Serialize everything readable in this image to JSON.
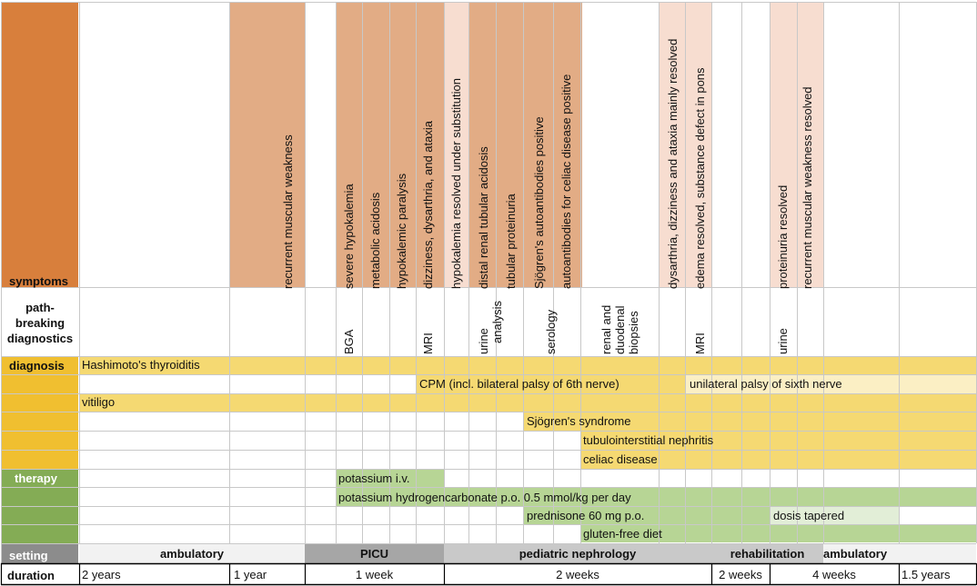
{
  "row_headers": {
    "symptoms": "symptoms",
    "diagnostics": [
      "path-",
      "breaking",
      "diagnostics"
    ],
    "diagnosis": "diagnosis",
    "therapy": "therapy",
    "setting": "setting",
    "duration": "duration"
  },
  "symptoms": [
    "recurrent muscular weakness",
    "severe hypokalemia",
    "metabolic acidosis",
    "hypokalemic paralysis",
    "dizziness, dysarthria, and ataxia",
    "hypokalemia resolved under substitution",
    "distal renal tubular acidosis",
    "tubular proteinuria",
    "Sjögren's autoantibodies positive",
    "autoantibodies for celiac disease positive",
    "dysarthria, dizziness and ataxia mainly resolved",
    "edema resolved, substance defect in pons",
    "proteinuria resolved",
    "recurrent muscular weakness resolved"
  ],
  "diagnostics": {
    "bga": "BGA",
    "mri1": "MRI",
    "urine_analysis": [
      "urine",
      "analysis"
    ],
    "serology": "serology",
    "biopsies": [
      "renal and",
      "duodenal",
      "biopsies"
    ],
    "mri2": "MRI",
    "urine": "urine"
  },
  "diagnosis": [
    "Hashimoto's thyroiditis",
    "CPM (incl. bilateral palsy of 6th nerve)",
    "unilateral palsy of sixth nerve",
    "vitiligo",
    "Sjögren's syndrome",
    "tubulointerstitial nephritis",
    "celiac disease"
  ],
  "therapy": [
    "potassium i.v.",
    "potassium hydrogencarbonate p.o. 0.5 mmol/kg per day",
    "prednisone 60 mg p.o.",
    "dosis tapered",
    "gluten-free diet"
  ],
  "setting": [
    "ambulatory",
    "PICU",
    "pediatric nephrology",
    "rehabilitation",
    "ambulatory"
  ],
  "duration": [
    "2 years",
    "1 year",
    "1 week",
    "2 weeks",
    "2 weeks",
    "4 weeks",
    "1.5 years"
  ],
  "colors": {
    "symptoms_header": "#d87f3c",
    "symptom_dark": "#e2ac85",
    "symptom_light": "#f7ddd0",
    "diagnosis_header": "#f0bf30",
    "diagnosis_bar": "#f5d972",
    "diagnosis_light": "#fbefc4",
    "therapy_header": "#84ac55",
    "therapy_bar": "#b7d595",
    "therapy_light": "#e2eed7",
    "setting_header": "#8c8c8c",
    "grid": "#c8c8c8"
  }
}
